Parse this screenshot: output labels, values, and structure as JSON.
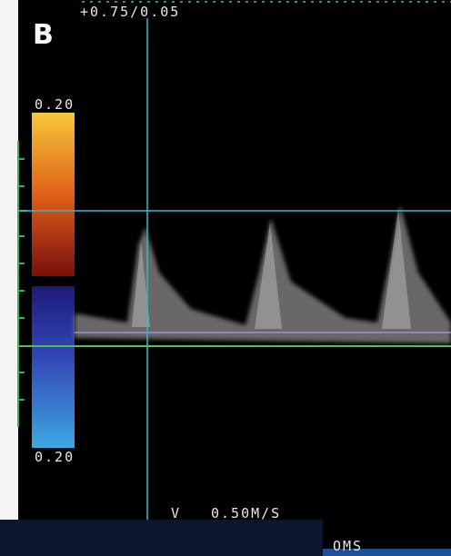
{
  "panel_label": "B",
  "header": "+0.75/0.05",
  "scale": {
    "top": "0.20",
    "bottom": "0.20"
  },
  "footer": {
    "velocity_label": "V",
    "velocity": "0.50M/S",
    "time": "OMS"
  }
}
